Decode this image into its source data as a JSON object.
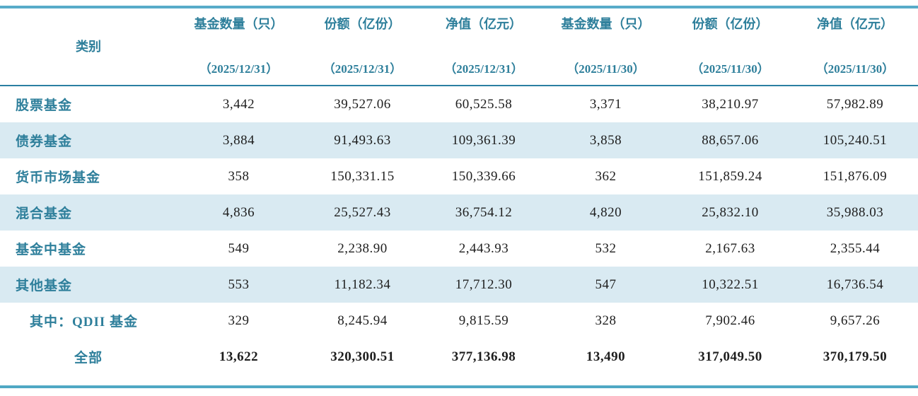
{
  "table": {
    "columns": [
      {
        "label": "类别",
        "date": ""
      },
      {
        "label": "基金数量（只）",
        "date": "（2025/12/31）"
      },
      {
        "label": "份额（亿份）",
        "date": "（2025/12/31）"
      },
      {
        "label": "净值（亿元）",
        "date": "（2025/12/31）"
      },
      {
        "label": "基金数量（只）",
        "date": "（2025/11/30）"
      },
      {
        "label": "份额（亿份）",
        "date": "（2025/11/30）"
      },
      {
        "label": "净值（亿元）",
        "date": "（2025/11/30）"
      }
    ],
    "rows": [
      {
        "category": "股票基金",
        "values": [
          "3,442",
          "39,527.06",
          "60,525.58",
          "3,371",
          "38,210.97",
          "57,982.89"
        ]
      },
      {
        "category": "债券基金",
        "values": [
          "3,884",
          "91,493.63",
          "109,361.39",
          "3,858",
          "88,657.06",
          "105,240.51"
        ]
      },
      {
        "category": "货币市场基金",
        "values": [
          "358",
          "150,331.15",
          "150,339.66",
          "362",
          "151,859.24",
          "151,876.09"
        ]
      },
      {
        "category": "混合基金",
        "values": [
          "4,836",
          "25,527.43",
          "36,754.12",
          "4,820",
          "25,832.10",
          "35,988.03"
        ]
      },
      {
        "category": "基金中基金",
        "values": [
          "549",
          "2,238.90",
          "2,443.93",
          "532",
          "2,167.63",
          "2,355.44"
        ]
      },
      {
        "category": "其他基金",
        "values": [
          "553",
          "11,182.34",
          "17,712.30",
          "547",
          "10,322.51",
          "16,736.54"
        ]
      },
      {
        "category": "其中：QDII 基金",
        "values": [
          "329",
          "8,245.94",
          "9,815.59",
          "328",
          "7,902.46",
          "9,657.26"
        ]
      },
      {
        "category": "全部",
        "values": [
          "13,622",
          "320,300.51",
          "377,136.98",
          "13,490",
          "317,049.50",
          "370,179.50"
        ]
      }
    ]
  },
  "colors": {
    "accent_teal_text": "#2e7f9b",
    "stripe_row_bg": "#d9eaf2",
    "rule_top": "#58abc9",
    "rule_header": "#2a7fa2",
    "rule_bottom": "#4fa8c4",
    "number_text": "#1e1e1e"
  }
}
